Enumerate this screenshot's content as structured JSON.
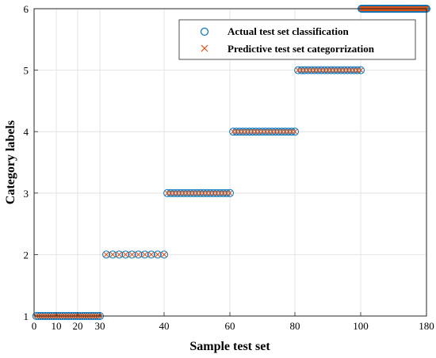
{
  "chart_data": {
    "type": "scatter",
    "xlabel": "Sample test set",
    "ylabel": "Category labels",
    "xticks": [
      "0",
      "10",
      "20",
      "30",
      "40",
      "60",
      "80",
      "100",
      "180"
    ],
    "yticks": [
      "1",
      "2",
      "3",
      "4",
      "5",
      "6"
    ],
    "ylim": [
      1,
      6
    ],
    "grid": true,
    "legend_position": "top-right",
    "series": [
      {
        "name": "Actual test set classification",
        "marker": "circle",
        "color": "#0072BD",
        "segments": [
          {
            "x_from": 1,
            "x_to": 30,
            "y": 1
          },
          {
            "x_from": 31,
            "x_to": 40,
            "y": 2
          },
          {
            "x_from": 41,
            "x_to": 60,
            "y": 3
          },
          {
            "x_from": 61,
            "x_to": 80,
            "y": 4
          },
          {
            "x_from": 81,
            "x_to": 100,
            "y": 5
          },
          {
            "x_from": 101,
            "x_to": 180,
            "y": 6
          }
        ]
      },
      {
        "name": "Predictive test set categorrization",
        "marker": "x",
        "color": "#D95319",
        "segments": [
          {
            "x_from": 1,
            "x_to": 30,
            "y": 1
          },
          {
            "x_from": 31,
            "x_to": 40,
            "y": 2
          },
          {
            "x_from": 41,
            "x_to": 60,
            "y": 3
          },
          {
            "x_from": 61,
            "x_to": 80,
            "y": 4
          },
          {
            "x_from": 81,
            "x_to": 100,
            "y": 5
          },
          {
            "x_from": 101,
            "x_to": 180,
            "y": 6
          }
        ]
      }
    ]
  }
}
